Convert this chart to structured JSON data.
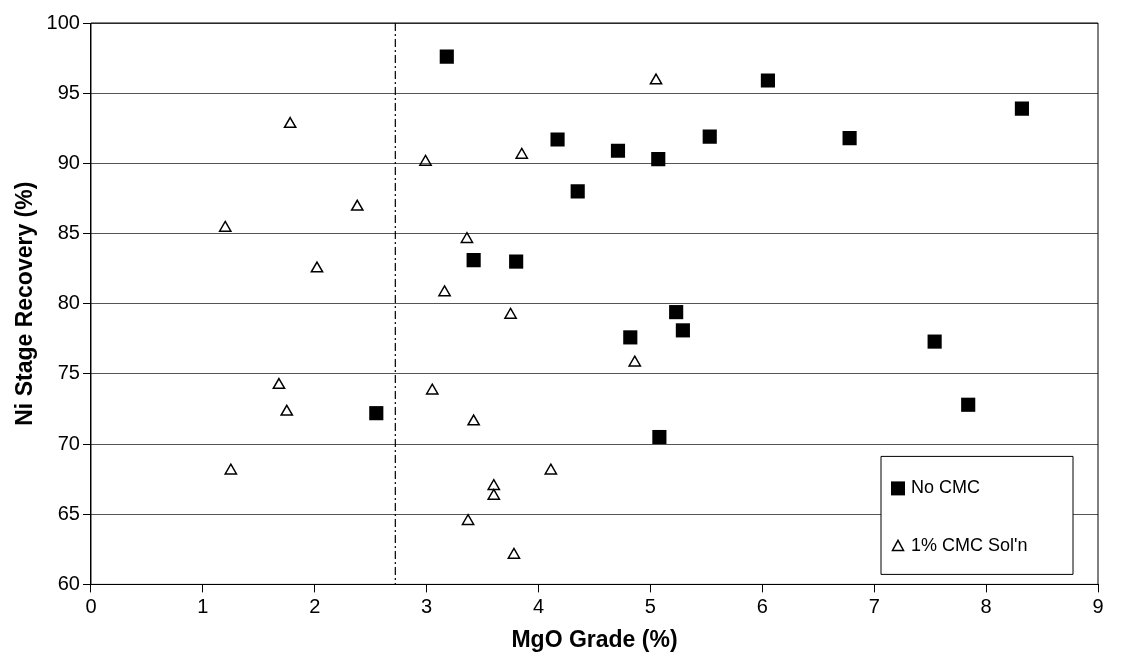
{
  "chart_data": {
    "type": "scatter",
    "xlabel": "MgO Grade (%)",
    "ylabel": "Ni Stage Recovery (%)",
    "xlim": [
      0,
      9
    ],
    "xticks": [
      0,
      1,
      2,
      3,
      4,
      5,
      6,
      7,
      8,
      9
    ],
    "ylim": [
      60,
      100
    ],
    "yticks": [
      60,
      65,
      70,
      75,
      80,
      85,
      90,
      95,
      100
    ],
    "grid": "y",
    "legend": "bottom right",
    "ref_lines": [
      {
        "axis": "x",
        "value": 2.72,
        "color": "#000000",
        "line_style": "dashdot"
      }
    ],
    "series": [
      {
        "name": "No CMC",
        "color": "#000000",
        "marker": "square",
        "x": [
          3.18,
          2.55,
          3.42,
          3.8,
          4.17,
          4.35,
          4.71,
          4.82,
          5.07,
          5.08,
          5.23,
          5.29,
          5.53,
          6.05,
          6.78,
          7.54,
          7.84,
          8.32
        ],
        "values": [
          97.6,
          72.2,
          83.1,
          83.0,
          91.7,
          88.0,
          90.9,
          77.6,
          90.3,
          70.5,
          79.4,
          78.1,
          91.9,
          95.9,
          91.8,
          77.3,
          72.8,
          93.9
        ]
      },
      {
        "name": "1% CMC Sol'n",
        "color": "#000000",
        "marker": "triangle",
        "x": [
          1.2,
          1.25,
          1.68,
          1.75,
          1.78,
          2.02,
          2.38,
          2.99,
          3.05,
          3.16,
          3.36,
          3.37,
          3.42,
          3.6,
          3.6,
          3.75,
          3.78,
          3.85,
          4.11,
          4.86,
          5.05
        ],
        "values": [
          85.4,
          68.1,
          74.2,
          72.3,
          92.8,
          82.5,
          86.9,
          90.1,
          73.8,
          80.8,
          84.6,
          64.5,
          71.6,
          67.0,
          66.3,
          79.2,
          62.1,
          90.6,
          68.1,
          75.8,
          95.9
        ]
      }
    ]
  }
}
